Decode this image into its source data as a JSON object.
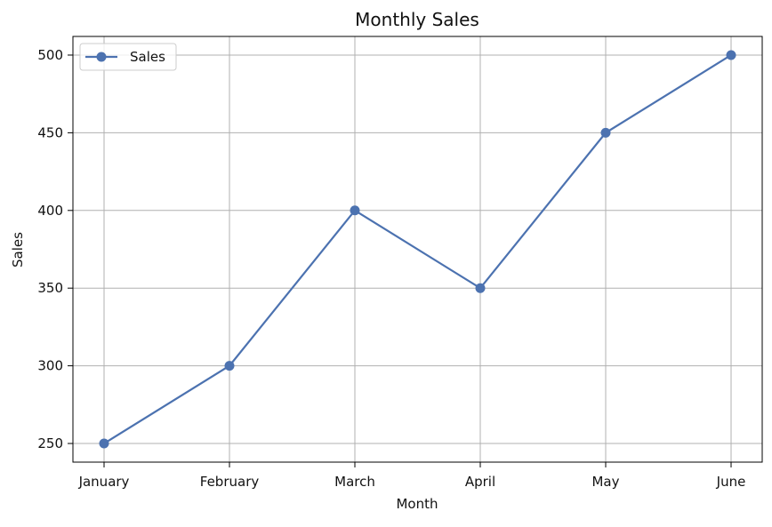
{
  "chart_data": {
    "type": "line",
    "title": "Monthly Sales",
    "xlabel": "Month",
    "ylabel": "Sales",
    "categories": [
      "January",
      "February",
      "March",
      "April",
      "May",
      "June"
    ],
    "series": [
      {
        "name": "Sales",
        "values": [
          250,
          300,
          400,
          350,
          450,
          500
        ],
        "color": "#4c72b0",
        "marker": "circle"
      }
    ],
    "ylim": [
      238,
      512
    ],
    "yticks": [
      250,
      300,
      350,
      400,
      450,
      500
    ],
    "grid": true,
    "legend_position": "top-left"
  }
}
